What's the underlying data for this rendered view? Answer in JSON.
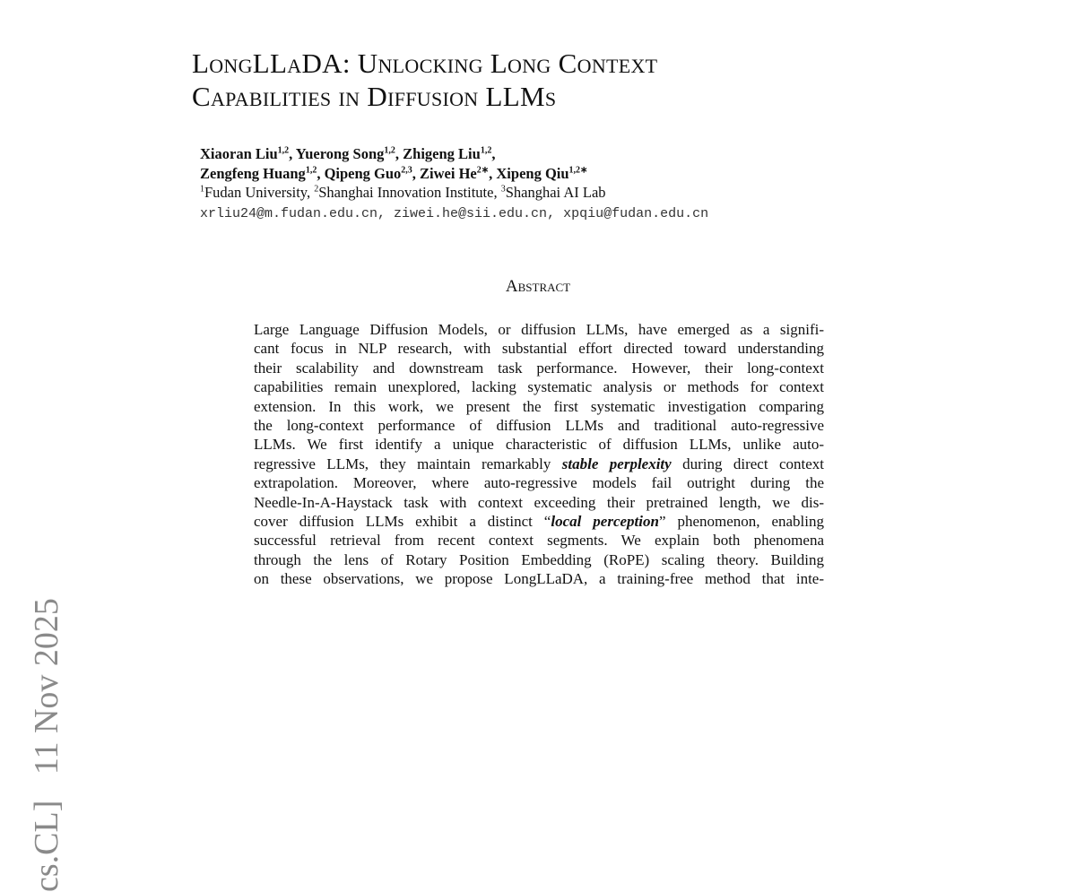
{
  "arxiv_stamp": "cs.CL]   11 Nov 2025",
  "title": {
    "line1": "LongLLaDA: Unlocking Long Context",
    "line2": "Capabilities in Diffusion LLMs"
  },
  "authors": {
    "line1": [
      {
        "name": "Xiaoran Liu",
        "sup": "1,2",
        "sep": ", "
      },
      {
        "name": "Yuerong Song",
        "sup": "1,2",
        "sep": ", "
      },
      {
        "name": "Zhigeng Liu",
        "sup": "1,2",
        "sep": ","
      }
    ],
    "line2": [
      {
        "name": "Zengfeng Huang",
        "sup": "1,2",
        "sep": ", "
      },
      {
        "name": "Qipeng Guo",
        "sup": "2,3",
        "sep": ", "
      },
      {
        "name": "Ziwei He",
        "sup": "2∗",
        "sep": ", "
      },
      {
        "name": "Xipeng Qiu",
        "sup": "1,2∗",
        "sep": ""
      }
    ],
    "affiliations": [
      {
        "sup": "1",
        "name": "Fudan University, "
      },
      {
        "sup": "2",
        "name": "Shanghai Innovation Institute, "
      },
      {
        "sup": "3",
        "name": "Shanghai AI Lab"
      }
    ],
    "emails": "xrliu24@m.fudan.edu.cn, ziwei.he@sii.edu.cn, xpqiu@fudan.edu.cn"
  },
  "abstract": {
    "heading": "Abstract",
    "lines": [
      [
        {
          "t": "Large Language Diffusion Models, or diffusion LLMs, have emerged as a signifi-"
        }
      ],
      [
        {
          "t": "cant focus in NLP research, with substantial effort directed toward understanding"
        }
      ],
      [
        {
          "t": "their scalability and downstream task performance. However, their long-context"
        }
      ],
      [
        {
          "t": "capabilities remain unexplored, lacking systematic analysis or methods for context"
        }
      ],
      [
        {
          "t": "extension. In this work, we present the first systematic investigation comparing"
        }
      ],
      [
        {
          "t": "the long-context performance of diffusion LLMs and traditional auto-regressive"
        }
      ],
      [
        {
          "t": "LLMs. We first identify a unique characteristic of diffusion LLMs, unlike auto-"
        }
      ],
      [
        {
          "t": "regressive LLMs, they maintain remarkably "
        },
        {
          "t": "stable perplexity",
          "em": true
        },
        {
          "t": " during direct context"
        }
      ],
      [
        {
          "t": "extrapolation. Moreover, where auto-regressive models fail outright during the"
        }
      ],
      [
        {
          "t": "Needle-In-A-Haystack task with context exceeding their pretrained length, we dis-"
        }
      ],
      [
        {
          "t": "cover diffusion LLMs exhibit a distinct “"
        },
        {
          "t": "local perception",
          "em": true
        },
        {
          "t": "” phenomenon, enabling"
        }
      ],
      [
        {
          "t": "successful retrieval from recent context segments. We explain both phenomena"
        }
      ],
      [
        {
          "t": "through the lens of Rotary Position Embedding (RoPE) scaling theory. Building"
        }
      ],
      [
        {
          "t": "on these observations, we propose LongLLaDA, a training-free method that inte-"
        }
      ]
    ]
  }
}
